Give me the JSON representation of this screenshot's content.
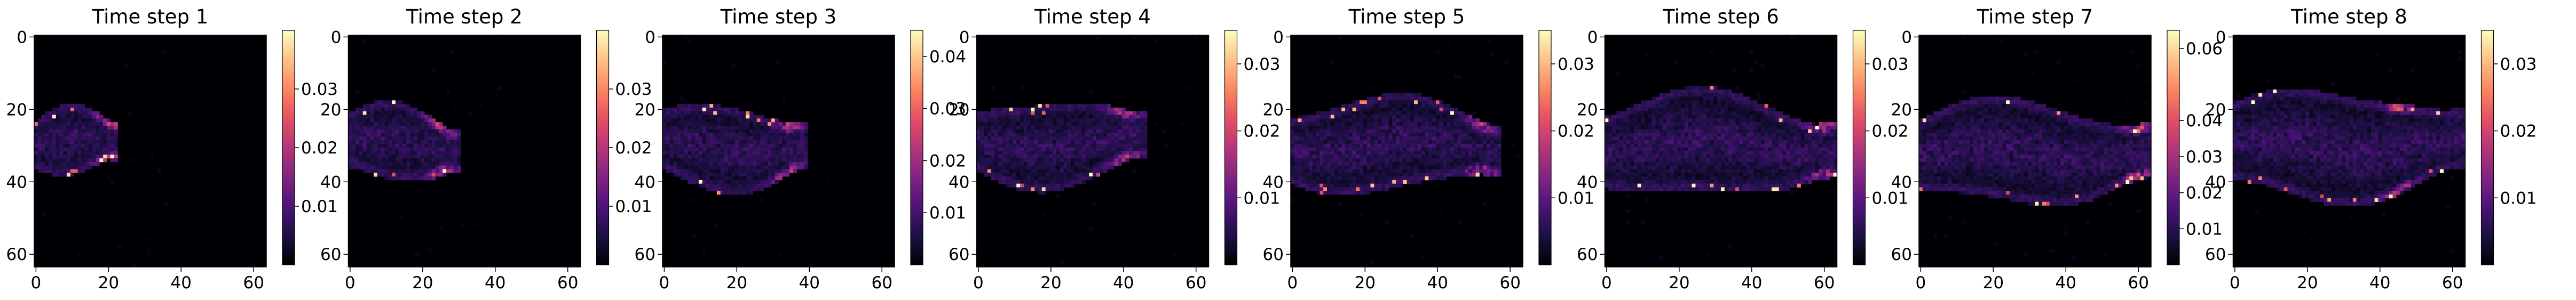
{
  "chart_data": [
    {
      "type": "heatmap",
      "title": "Time step 1",
      "xlim": [
        0,
        64
      ],
      "ylim": [
        64,
        0
      ],
      "x_ticks": [
        "0",
        "20",
        "40",
        "60"
      ],
      "y_ticks": [
        "0",
        "20",
        "40",
        "60"
      ],
      "colormap": "magma",
      "colorbar_range": [
        0,
        0.04
      ],
      "colorbar_ticks": [
        {
          "value": 0.01,
          "label": "0.01"
        },
        {
          "value": 0.02,
          "label": "0.02"
        },
        {
          "value": 0.03,
          "label": "0.03"
        }
      ],
      "plume": {
        "y_center": 30,
        "x_tip": 22,
        "half_width": 8,
        "hot_x": 20
      }
    },
    {
      "type": "heatmap",
      "title": "Time step 2",
      "xlim": [
        0,
        64
      ],
      "ylim": [
        64,
        0
      ],
      "x_ticks": [
        "0",
        "20",
        "40",
        "60"
      ],
      "y_ticks": [
        "0",
        "20",
        "40",
        "60"
      ],
      "colormap": "magma",
      "colorbar_range": [
        0,
        0.04
      ],
      "colorbar_ticks": [
        {
          "value": 0.01,
          "label": "0.01"
        },
        {
          "value": 0.02,
          "label": "0.02"
        },
        {
          "value": 0.03,
          "label": "0.03"
        }
      ],
      "plume": {
        "y_center": 30,
        "x_tip": 30,
        "half_width": 9,
        "hot_x": 25
      }
    },
    {
      "type": "heatmap",
      "title": "Time step 3",
      "xlim": [
        0,
        64
      ],
      "ylim": [
        64,
        0
      ],
      "x_ticks": [
        "0",
        "20",
        "40",
        "60"
      ],
      "y_ticks": [
        "0",
        "20",
        "40",
        "60"
      ],
      "colormap": "magma",
      "colorbar_range": [
        0,
        0.045
      ],
      "colorbar_ticks": [
        {
          "value": 0.01,
          "label": "0.01"
        },
        {
          "value": 0.02,
          "label": "0.02"
        },
        {
          "value": 0.03,
          "label": "0.03"
        },
        {
          "value": 0.04,
          "label": "0.04"
        }
      ],
      "plume": {
        "y_center": 30,
        "x_tip": 39,
        "half_width": 10,
        "hot_x": 34
      }
    },
    {
      "type": "heatmap",
      "title": "Time step 4",
      "xlim": [
        0,
        64
      ],
      "ylim": [
        64,
        0
      ],
      "x_ticks": [
        "0",
        "20",
        "40",
        "60"
      ],
      "y_ticks": [
        "0",
        "20",
        "40",
        "60"
      ],
      "colormap": "magma",
      "colorbar_range": [
        0,
        0.035
      ],
      "colorbar_ticks": [
        {
          "value": 0.01,
          "label": "0.01"
        },
        {
          "value": 0.02,
          "label": "0.02"
        },
        {
          "value": 0.03,
          "label": "0.03"
        }
      ],
      "plume": {
        "y_center": 29,
        "x_tip": 46,
        "half_width": 10,
        "hot_x": 40
      }
    },
    {
      "type": "heatmap",
      "title": "Time step 5",
      "xlim": [
        0,
        64
      ],
      "ylim": [
        64,
        0
      ],
      "x_ticks": [
        "0",
        "20",
        "40",
        "60"
      ],
      "y_ticks": [
        "0",
        "20",
        "40",
        "60"
      ],
      "colormap": "magma",
      "colorbar_range": [
        0,
        0.035
      ],
      "colorbar_ticks": [
        {
          "value": 0.01,
          "label": "0.01"
        },
        {
          "value": 0.02,
          "label": "0.02"
        },
        {
          "value": 0.03,
          "label": "0.03"
        }
      ],
      "plume": {
        "y_center": 30,
        "x_tip": 57,
        "half_width": 11,
        "hot_x": 52
      }
    },
    {
      "type": "heatmap",
      "title": "Time step 6",
      "xlim": [
        0,
        64
      ],
      "ylim": [
        64,
        0
      ],
      "x_ticks": [
        "0",
        "20",
        "40",
        "60"
      ],
      "y_ticks": [
        "0",
        "20",
        "40",
        "60"
      ],
      "colormap": "magma",
      "colorbar_range": [
        0,
        0.035
      ],
      "colorbar_ticks": [
        {
          "value": 0.01,
          "label": "0.01"
        },
        {
          "value": 0.02,
          "label": "0.02"
        },
        {
          "value": 0.03,
          "label": "0.03"
        }
      ],
      "plume": {
        "y_center": 30,
        "x_tip": 63,
        "half_width": 12,
        "hot_x": 60
      }
    },
    {
      "type": "heatmap",
      "title": "Time step 7",
      "xlim": [
        0,
        64
      ],
      "ylim": [
        64,
        0
      ],
      "x_ticks": [
        "0",
        "20",
        "40",
        "60"
      ],
      "y_ticks": [
        "0",
        "20",
        "40",
        "60"
      ],
      "colormap": "magma",
      "colorbar_range": [
        0,
        0.065
      ],
      "colorbar_ticks": [
        {
          "value": 0.01,
          "label": "0.01"
        },
        {
          "value": 0.02,
          "label": "0.02"
        },
        {
          "value": 0.03,
          "label": "0.03"
        },
        {
          "value": 0.04,
          "label": "0.04"
        },
        {
          "value": 0.06,
          "label": "0.06"
        }
      ],
      "plume": {
        "y_center": 32,
        "x_tip": 63,
        "half_width": 12,
        "hot_x": 60
      }
    },
    {
      "type": "heatmap",
      "title": "Time step 8",
      "xlim": [
        0,
        64
      ],
      "ylim": [
        64,
        0
      ],
      "x_ticks": [
        "0",
        "20",
        "40",
        "60"
      ],
      "y_ticks": [
        "0",
        "20",
        "40",
        "60"
      ],
      "colormap": "magma",
      "colorbar_range": [
        0,
        0.035
      ],
      "colorbar_ticks": [
        {
          "value": 0.01,
          "label": "0.01"
        },
        {
          "value": 0.02,
          "label": "0.02"
        },
        {
          "value": 0.03,
          "label": "0.03"
        }
      ],
      "plume": {
        "y_center": 30,
        "x_tip": 63,
        "half_width": 13,
        "hot_x": 45
      }
    }
  ]
}
